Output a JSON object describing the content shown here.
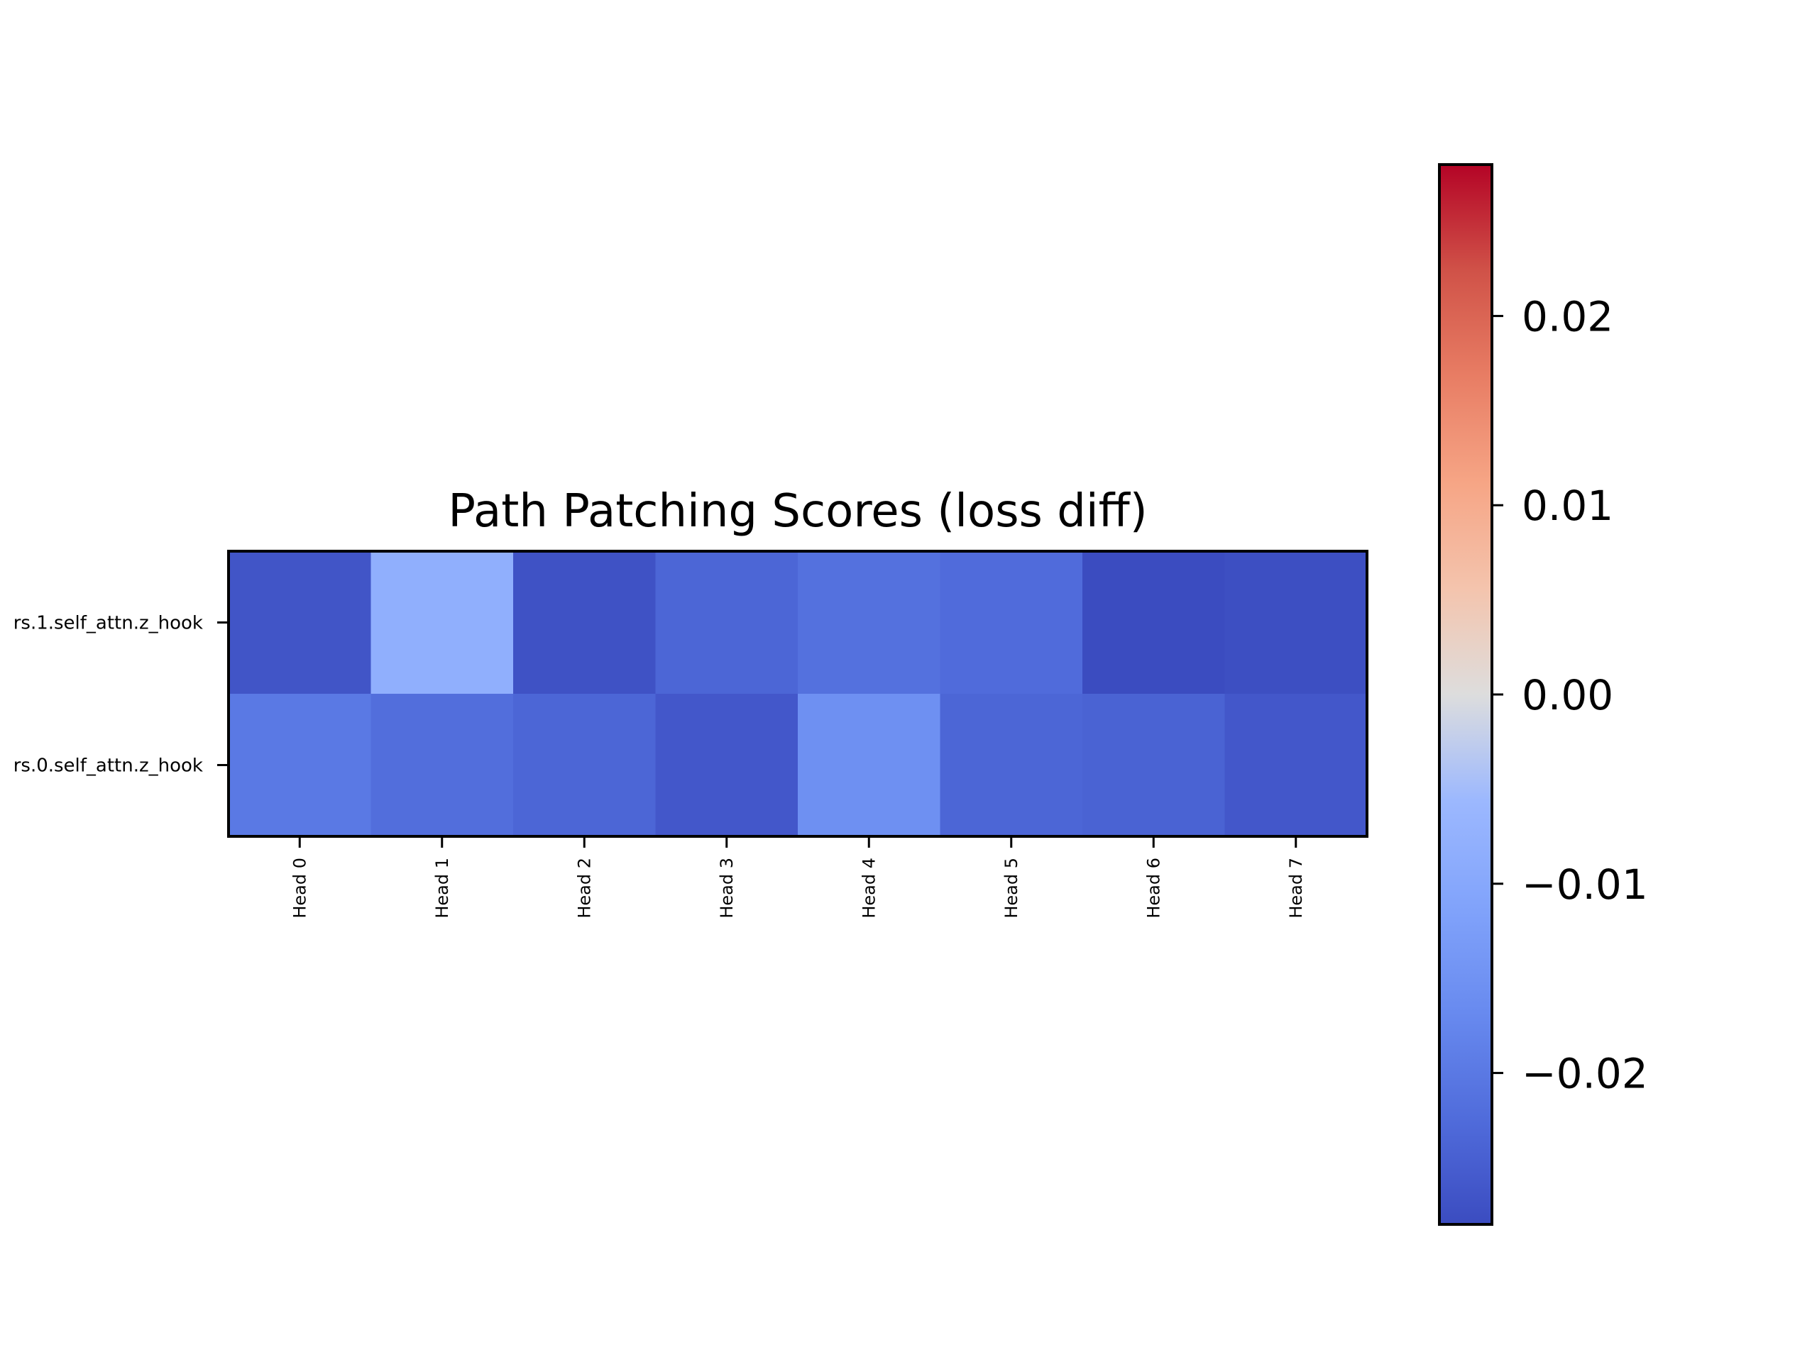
{
  "chart_data": {
    "type": "heatmap",
    "title": "Path Patching Scores (loss diff)",
    "xlabel": "",
    "ylabel": "",
    "x_categories": [
      "Head 0",
      "Head 1",
      "Head 2",
      "Head 3",
      "Head 4",
      "Head 5",
      "Head 6",
      "Head 7"
    ],
    "y_categories": [
      "rs.1.self_attn.z_hook",
      "rs.0.self_attn.z_hook"
    ],
    "values": [
      [
        -0.0265,
        -0.008,
        -0.027,
        -0.0235,
        -0.0215,
        -0.0225,
        -0.028,
        -0.0275
      ],
      [
        -0.02,
        -0.022,
        -0.0235,
        -0.026,
        -0.0155,
        -0.0235,
        -0.024,
        -0.026
      ]
    ],
    "colormap": "coolwarm",
    "vmin": -0.028,
    "vmax": 0.028,
    "colorbar": {
      "ticks": [
        0.02,
        0.01,
        0.0,
        -0.01,
        -0.02
      ],
      "tick_labels": [
        "0.02",
        "0.01",
        "0.00",
        "−0.01",
        "−0.02"
      ],
      "placement": "right"
    },
    "grid": false
  }
}
